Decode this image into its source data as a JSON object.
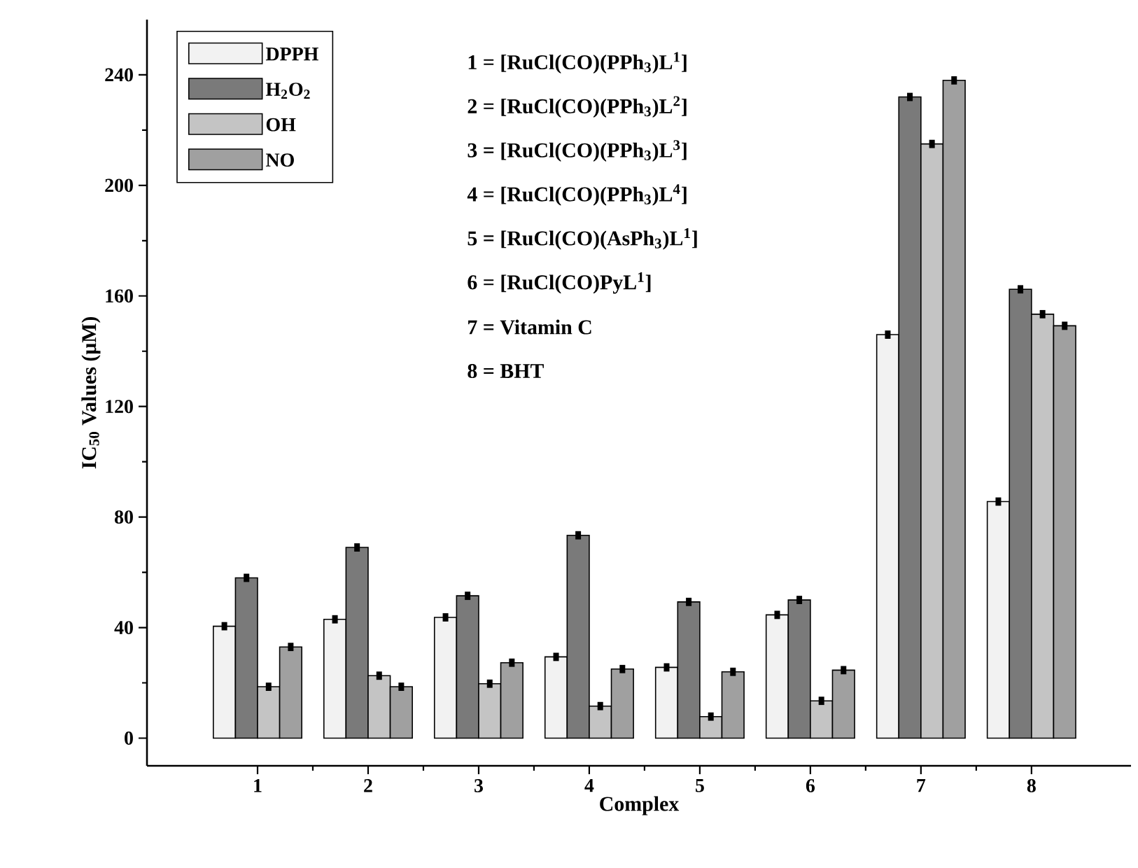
{
  "chart_data": {
    "type": "bar",
    "xlabel": "Complex",
    "ylabel": "IC$_{50}$ Values (μM)",
    "categories": [
      "1",
      "2",
      "3",
      "4",
      "5",
      "6",
      "7",
      "8"
    ],
    "series": [
      {
        "name": "DPPH",
        "color": "#f2f2f2",
        "values": [
          40.5,
          43,
          43.7,
          29.4,
          25.6,
          44.6,
          146,
          85.6
        ],
        "errors": [
          1.5,
          1.5,
          1.5,
          1.5,
          1.5,
          1.5,
          1.5,
          1.5
        ]
      },
      {
        "name": "H$_{2}$O$_{2}$",
        "color": "#7a7a7a",
        "values": [
          58,
          69,
          51.5,
          73.4,
          49.3,
          50,
          232,
          162.4
        ],
        "errors": [
          1.5,
          1.5,
          1.5,
          1.5,
          1.5,
          1.5,
          1.5,
          1.5
        ]
      },
      {
        "name": "OH",
        "color": "#c4c4c4",
        "values": [
          18.6,
          22.6,
          19.7,
          11.6,
          7.8,
          13.5,
          215,
          153.4
        ],
        "errors": [
          1.5,
          1.5,
          1.5,
          1.5,
          1.5,
          1.5,
          1.5,
          1.5
        ]
      },
      {
        "name": "NO",
        "color": "#a0a0a0",
        "values": [
          33,
          18.6,
          27.3,
          25,
          24,
          24.6,
          238,
          149.2
        ],
        "errors": [
          1.5,
          1.5,
          1.5,
          1.5,
          1.5,
          1.5,
          1.5,
          1.5
        ]
      }
    ],
    "ylim": [
      -10,
      260
    ],
    "yticks": [
      0,
      40,
      80,
      120,
      160,
      200,
      240
    ],
    "legend": "top left",
    "grid": false,
    "annotations": [
      "1 = [RuCl(CO)(PPh$_{3}$)L$^{1}$]",
      "2 = [RuCl(CO)(PPh$_{3}$)L$^{2}$]",
      "3 = [RuCl(CO)(PPh$_{3}$)L$^{3}$]",
      "4 = [RuCl(CO)(PPh$_{3}$)L$^{4}$]",
      "5 = [RuCl(CO)(AsPh$_{3}$)L$^{1}$]",
      "6 = [RuCl(CO)PyL$^{1}$]",
      "7 = Vitamin C",
      "8 = BHT"
    ]
  }
}
